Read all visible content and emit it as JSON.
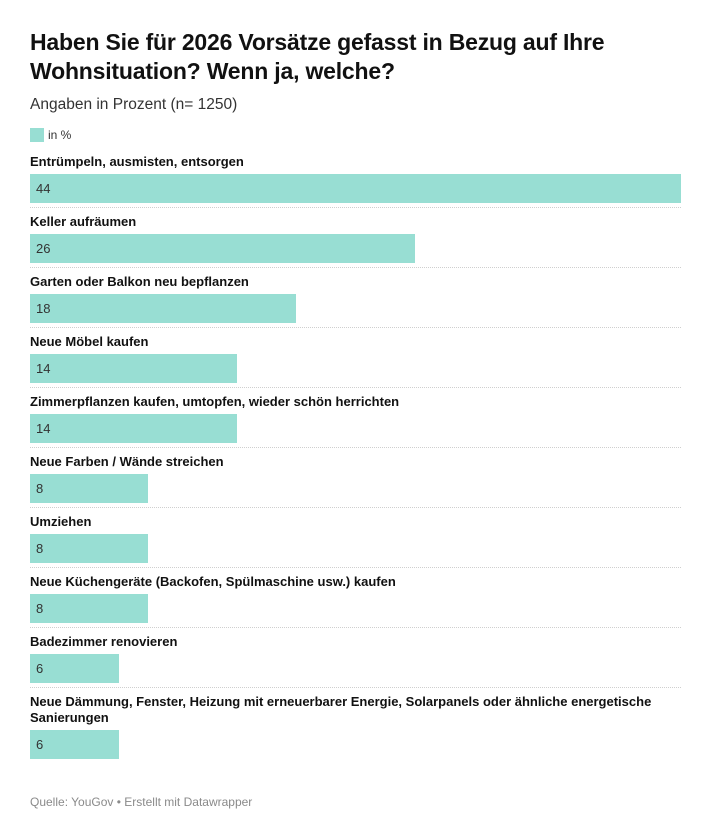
{
  "header": {
    "title": "Haben Sie für 2026 Vorsätze gefasst in Bezug auf Ihre Wohnsituation? Wenn ja, welche?",
    "subtitle": "Angaben in Prozent (n= 1250)"
  },
  "legend": {
    "label": "in %",
    "color": "#98ded3"
  },
  "footer": {
    "text": "Quelle: YouGov • Erstellt mit Datawrapper"
  },
  "chart_data": {
    "type": "bar",
    "orientation": "horizontal",
    "title": "Haben Sie für 2026 Vorsätze gefasst in Bezug auf Ihre Wohnsituation? Wenn ja, welche?",
    "subtitle": "Angaben in Prozent (n= 1250)",
    "xlabel": "",
    "ylabel": "",
    "xlim": [
      0,
      44
    ],
    "grid": false,
    "legend": {
      "entries": [
        "in %"
      ],
      "position": "top-left"
    },
    "bar_color": "#98ded3",
    "categories": [
      "Entrümpeln, ausmisten, entsorgen",
      "Keller aufräumen",
      "Garten oder Balkon neu bepflanzen",
      "Neue Möbel kaufen",
      "Zimmerpflanzen kaufen, umtopfen, wieder schön herrichten",
      "Neue Farben / Wände streichen",
      "Umziehen",
      "Neue Küchengeräte (Backofen, Spülmaschine usw.) kaufen",
      "Badezimmer renovieren",
      "Neue Dämmung, Fenster, Heizung mit erneuerbarer Energie, Solarpanels oder ähnliche energetische Sanierungen"
    ],
    "series": [
      {
        "name": "in %",
        "values": [
          44,
          26,
          18,
          14,
          14,
          8,
          8,
          8,
          6,
          6
        ]
      }
    ],
    "source": "Quelle: YouGov • Erstellt mit Datawrapper"
  }
}
